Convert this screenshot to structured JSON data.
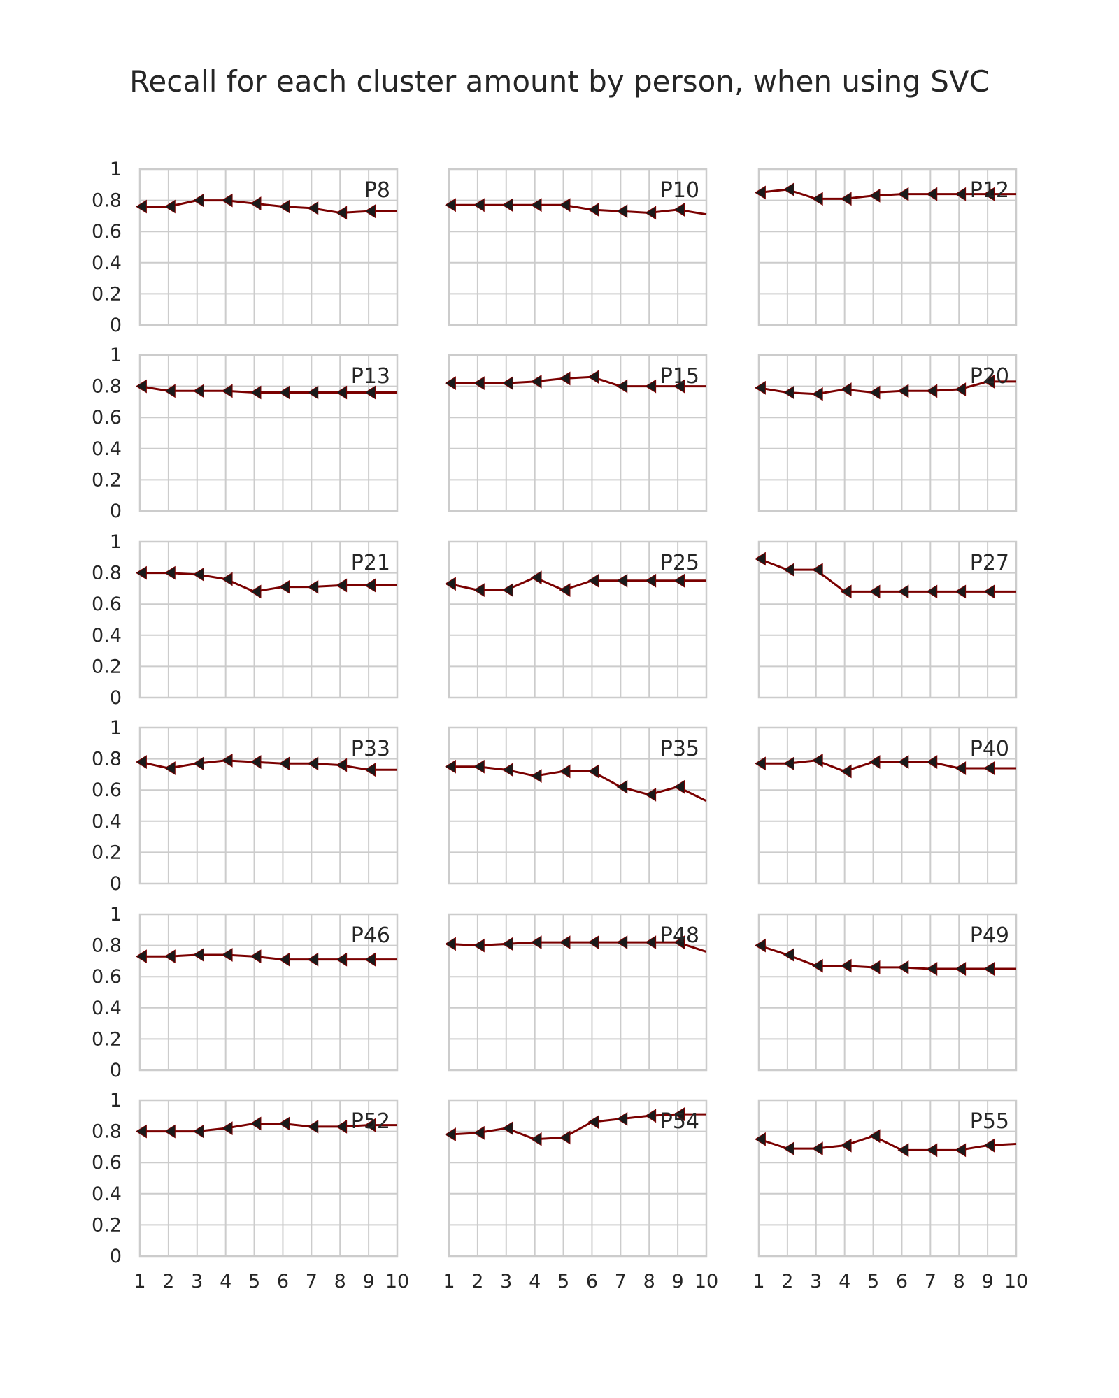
{
  "chart_data": {
    "type": "line",
    "title": "Recall for each cluster amount by person, when using SVC",
    "xlabel": "",
    "ylabel": "",
    "x": [
      1,
      2,
      3,
      4,
      5,
      6,
      7,
      8,
      9,
      10
    ],
    "x_ticks": [
      "1",
      "2",
      "3",
      "4",
      "5",
      "6",
      "7",
      "8",
      "9",
      "10"
    ],
    "y_ticks": [
      "0",
      "0.2",
      "0.4",
      "0.6",
      "0.8",
      "1"
    ],
    "ylim": [
      0,
      1
    ],
    "xlim": [
      1,
      10
    ],
    "grid": true,
    "layout": "6 rows x 3 columns, shared axes",
    "line_color": "#7a0000",
    "marker": "left-pointing triangle",
    "marker_color": "#1a1a1a",
    "panels": [
      {
        "name": "P8",
        "values": [
          0.76,
          0.76,
          0.8,
          0.8,
          0.78,
          0.76,
          0.75,
          0.72,
          0.73,
          0.73
        ]
      },
      {
        "name": "P10",
        "values": [
          0.77,
          0.77,
          0.77,
          0.77,
          0.77,
          0.74,
          0.73,
          0.72,
          0.74,
          0.71
        ]
      },
      {
        "name": "P12",
        "values": [
          0.85,
          0.87,
          0.81,
          0.81,
          0.83,
          0.84,
          0.84,
          0.84,
          0.84,
          0.84
        ]
      },
      {
        "name": "P13",
        "values": [
          0.8,
          0.77,
          0.77,
          0.77,
          0.76,
          0.76,
          0.76,
          0.76,
          0.76,
          0.76
        ]
      },
      {
        "name": "P15",
        "values": [
          0.82,
          0.82,
          0.82,
          0.83,
          0.85,
          0.86,
          0.8,
          0.8,
          0.8,
          0.8
        ]
      },
      {
        "name": "P20",
        "values": [
          0.79,
          0.76,
          0.75,
          0.78,
          0.76,
          0.77,
          0.77,
          0.78,
          0.83,
          0.83
        ]
      },
      {
        "name": "P21",
        "values": [
          0.8,
          0.8,
          0.79,
          0.76,
          0.68,
          0.71,
          0.71,
          0.72,
          0.72,
          0.72
        ]
      },
      {
        "name": "P25",
        "values": [
          0.73,
          0.69,
          0.69,
          0.77,
          0.69,
          0.75,
          0.75,
          0.75,
          0.75,
          0.75
        ]
      },
      {
        "name": "P27",
        "values": [
          0.89,
          0.82,
          0.82,
          0.68,
          0.68,
          0.68,
          0.68,
          0.68,
          0.68,
          0.68
        ]
      },
      {
        "name": "P33",
        "values": [
          0.78,
          0.74,
          0.77,
          0.79,
          0.78,
          0.77,
          0.77,
          0.76,
          0.73,
          0.73
        ]
      },
      {
        "name": "P35",
        "values": [
          0.75,
          0.75,
          0.73,
          0.69,
          0.72,
          0.72,
          0.62,
          0.57,
          0.62,
          0.53
        ]
      },
      {
        "name": "P40",
        "values": [
          0.77,
          0.77,
          0.79,
          0.72,
          0.78,
          0.78,
          0.78,
          0.74,
          0.74,
          0.74
        ]
      },
      {
        "name": "P46",
        "values": [
          0.73,
          0.73,
          0.74,
          0.74,
          0.73,
          0.71,
          0.71,
          0.71,
          0.71,
          0.71
        ]
      },
      {
        "name": "P48",
        "values": [
          0.81,
          0.8,
          0.81,
          0.82,
          0.82,
          0.82,
          0.82,
          0.82,
          0.82,
          0.76
        ]
      },
      {
        "name": "P49",
        "values": [
          0.8,
          0.74,
          0.67,
          0.67,
          0.66,
          0.66,
          0.65,
          0.65,
          0.65,
          0.65
        ]
      },
      {
        "name": "P52",
        "values": [
          0.8,
          0.8,
          0.8,
          0.82,
          0.85,
          0.85,
          0.83,
          0.83,
          0.84,
          0.84
        ]
      },
      {
        "name": "P54",
        "values": [
          0.78,
          0.79,
          0.82,
          0.75,
          0.76,
          0.86,
          0.88,
          0.9,
          0.91,
          0.91
        ]
      },
      {
        "name": "P55",
        "values": [
          0.75,
          0.69,
          0.69,
          0.71,
          0.77,
          0.68,
          0.68,
          0.68,
          0.71,
          0.72
        ]
      }
    ]
  }
}
